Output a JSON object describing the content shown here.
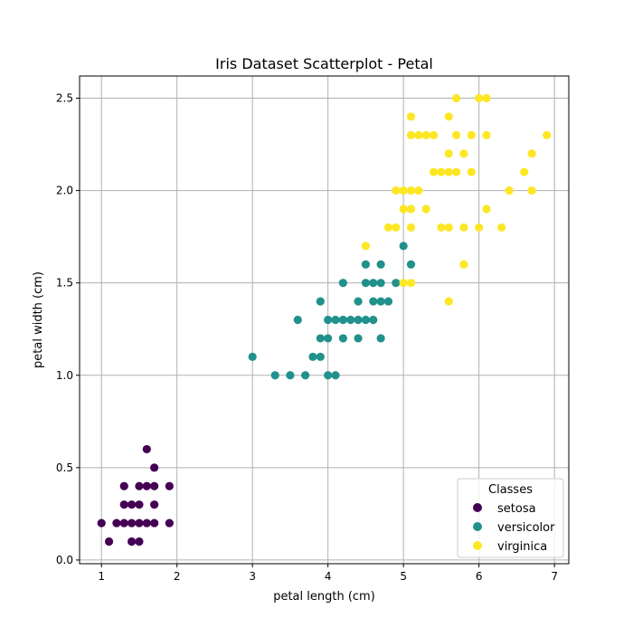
{
  "chart_data": {
    "type": "scatter",
    "title": "Iris Dataset Scatterplot - Petal",
    "xlabel": "petal length (cm)",
    "ylabel": "petal width (cm)",
    "xlim": [
      0.71,
      7.19
    ],
    "ylim": [
      -0.02,
      2.62
    ],
    "xticks": [
      1,
      2,
      3,
      4,
      5,
      6,
      7
    ],
    "xtick_labels": [
      "1",
      "2",
      "3",
      "4",
      "5",
      "6",
      "7"
    ],
    "yticks": [
      0.0,
      0.5,
      1.0,
      1.5,
      2.0,
      2.5
    ],
    "ytick_labels": [
      "0.0",
      "0.5",
      "1.0",
      "1.5",
      "2.0",
      "2.5"
    ],
    "grid": true,
    "legend": {
      "title": "Classes",
      "placement": "lower-right"
    },
    "series": [
      {
        "name": "setosa",
        "color": "#440154",
        "points": [
          [
            1.0,
            0.2
          ],
          [
            1.1,
            0.1
          ],
          [
            1.2,
            0.2
          ],
          [
            1.3,
            0.2
          ],
          [
            1.3,
            0.3
          ],
          [
            1.3,
            0.4
          ],
          [
            1.4,
            0.1
          ],
          [
            1.4,
            0.2
          ],
          [
            1.4,
            0.3
          ],
          [
            1.5,
            0.1
          ],
          [
            1.5,
            0.2
          ],
          [
            1.5,
            0.3
          ],
          [
            1.5,
            0.4
          ],
          [
            1.6,
            0.2
          ],
          [
            1.6,
            0.4
          ],
          [
            1.6,
            0.6
          ],
          [
            1.7,
            0.2
          ],
          [
            1.7,
            0.3
          ],
          [
            1.7,
            0.4
          ],
          [
            1.7,
            0.5
          ],
          [
            1.9,
            0.2
          ],
          [
            1.9,
            0.4
          ]
        ]
      },
      {
        "name": "versicolor",
        "color": "#21918c",
        "points": [
          [
            3.0,
            1.1
          ],
          [
            3.3,
            1.0
          ],
          [
            3.5,
            1.0
          ],
          [
            3.6,
            1.3
          ],
          [
            3.7,
            1.0
          ],
          [
            3.8,
            1.1
          ],
          [
            3.9,
            1.1
          ],
          [
            3.9,
            1.2
          ],
          [
            3.9,
            1.4
          ],
          [
            4.0,
            1.0
          ],
          [
            4.0,
            1.2
          ],
          [
            4.0,
            1.3
          ],
          [
            4.1,
            1.0
          ],
          [
            4.1,
            1.3
          ],
          [
            4.2,
            1.2
          ],
          [
            4.2,
            1.3
          ],
          [
            4.2,
            1.5
          ],
          [
            4.3,
            1.3
          ],
          [
            4.4,
            1.2
          ],
          [
            4.4,
            1.3
          ],
          [
            4.4,
            1.4
          ],
          [
            4.5,
            1.3
          ],
          [
            4.5,
            1.5
          ],
          [
            4.5,
            1.6
          ],
          [
            4.6,
            1.3
          ],
          [
            4.6,
            1.4
          ],
          [
            4.6,
            1.5
          ],
          [
            4.7,
            1.2
          ],
          [
            4.7,
            1.4
          ],
          [
            4.7,
            1.5
          ],
          [
            4.7,
            1.6
          ],
          [
            4.8,
            1.4
          ],
          [
            4.9,
            1.5
          ],
          [
            5.0,
            1.7
          ],
          [
            5.1,
            1.6
          ]
        ]
      },
      {
        "name": "virginica",
        "color": "#fde725",
        "points": [
          [
            4.5,
            1.7
          ],
          [
            4.8,
            1.8
          ],
          [
            4.9,
            1.8
          ],
          [
            4.9,
            2.0
          ],
          [
            5.0,
            1.5
          ],
          [
            5.0,
            1.9
          ],
          [
            5.0,
            2.0
          ],
          [
            5.1,
            1.5
          ],
          [
            5.1,
            1.8
          ],
          [
            5.1,
            1.9
          ],
          [
            5.1,
            2.0
          ],
          [
            5.1,
            2.3
          ],
          [
            5.1,
            2.4
          ],
          [
            5.2,
            2.0
          ],
          [
            5.2,
            2.3
          ],
          [
            5.3,
            1.9
          ],
          [
            5.3,
            2.3
          ],
          [
            5.4,
            2.1
          ],
          [
            5.4,
            2.3
          ],
          [
            5.5,
            1.8
          ],
          [
            5.5,
            2.1
          ],
          [
            5.6,
            1.4
          ],
          [
            5.6,
            1.8
          ],
          [
            5.6,
            2.1
          ],
          [
            5.6,
            2.2
          ],
          [
            5.6,
            2.4
          ],
          [
            5.7,
            2.1
          ],
          [
            5.7,
            2.3
          ],
          [
            5.7,
            2.5
          ],
          [
            5.8,
            1.6
          ],
          [
            5.8,
            1.8
          ],
          [
            5.8,
            2.2
          ],
          [
            5.9,
            2.1
          ],
          [
            5.9,
            2.3
          ],
          [
            6.0,
            1.8
          ],
          [
            6.0,
            2.5
          ],
          [
            6.1,
            1.9
          ],
          [
            6.1,
            2.3
          ],
          [
            6.1,
            2.5
          ],
          [
            6.3,
            1.8
          ],
          [
            6.4,
            2.0
          ],
          [
            6.6,
            2.1
          ],
          [
            6.7,
            2.0
          ],
          [
            6.7,
            2.2
          ],
          [
            6.9,
            2.3
          ]
        ]
      }
    ]
  }
}
